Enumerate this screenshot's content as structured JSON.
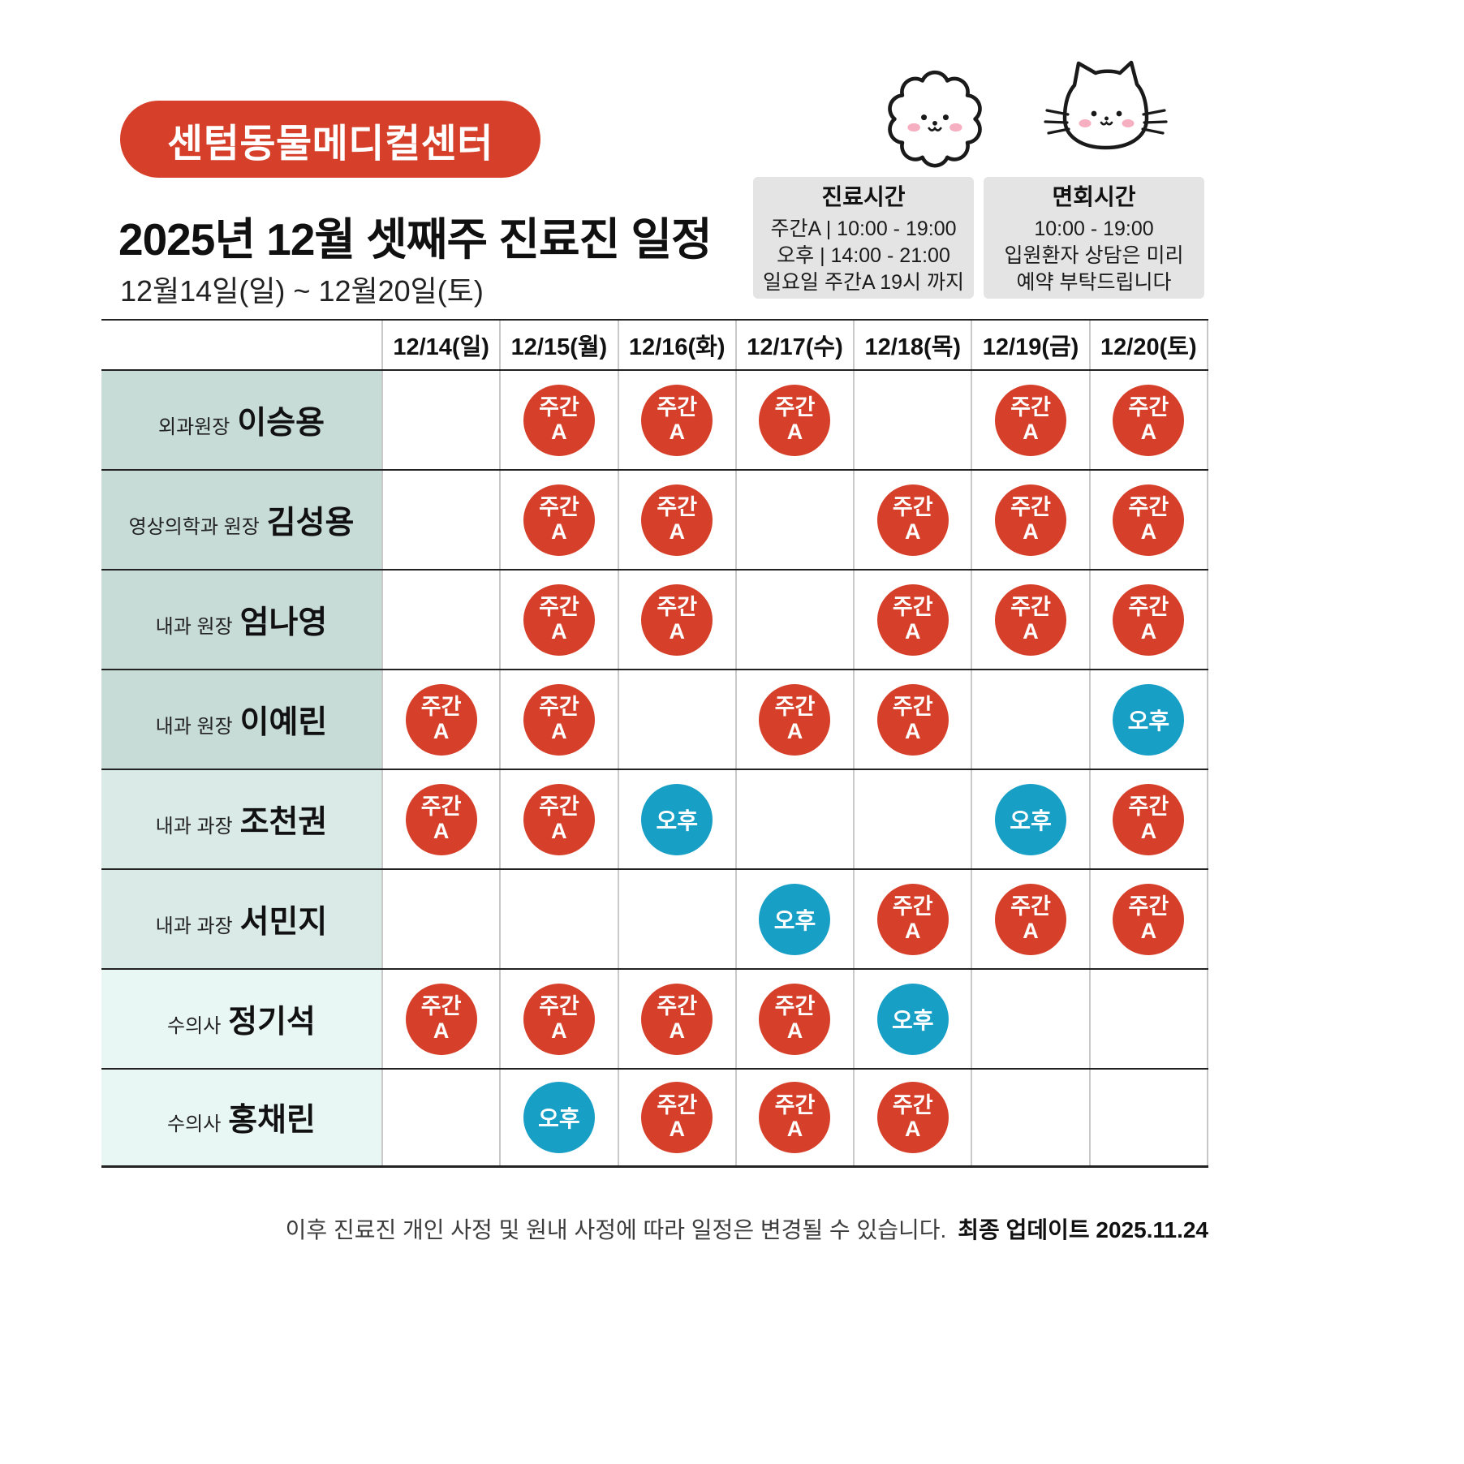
{
  "header": {
    "badge": "센텀동물메디컬센터",
    "title": "2025년 12월 셋째주 진료진 일정",
    "subtitle": "12월14일(일) ~ 12월20일(토)"
  },
  "info_boxes": [
    {
      "title": "진료시간",
      "lines": [
        "주간A | 10:00 - 19:00",
        "오후 | 14:00 - 21:00",
        "일요일 주간A 19시 까지"
      ]
    },
    {
      "title": "면회시간",
      "lines": [
        "10:00 - 19:00",
        "입원환자 상담은 미리",
        "예약 부탁드립니다"
      ]
    }
  ],
  "table": {
    "day_headers": [
      "12/14(일)",
      "12/15(월)",
      "12/16(화)",
      "12/17(수)",
      "12/18(목)",
      "12/19(금)",
      "12/20(토)"
    ],
    "shift_labels": {
      "dayA_line1": "주간",
      "dayA_line2": "A",
      "afternoon": "오후"
    },
    "rows": [
      {
        "role": "외과원장",
        "name": "이승용",
        "group": 1,
        "shifts": [
          null,
          "dayA",
          "dayA",
          "dayA",
          null,
          "dayA",
          "dayA"
        ]
      },
      {
        "role": "영상의학과 원장",
        "name": "김성용",
        "group": 1,
        "shifts": [
          null,
          "dayA",
          "dayA",
          null,
          "dayA",
          "dayA",
          "dayA"
        ]
      },
      {
        "role": "내과 원장",
        "name": "엄나영",
        "group": 1,
        "shifts": [
          null,
          "dayA",
          "dayA",
          null,
          "dayA",
          "dayA",
          "dayA"
        ]
      },
      {
        "role": "내과 원장",
        "name": "이예린",
        "group": 1,
        "shifts": [
          "dayA",
          "dayA",
          null,
          "dayA",
          "dayA",
          null,
          "afternoon"
        ]
      },
      {
        "role": "내과 과장",
        "name": "조천권",
        "group": 2,
        "shifts": [
          "dayA",
          "dayA",
          "afternoon",
          null,
          null,
          "afternoon",
          "dayA"
        ]
      },
      {
        "role": "내과 과장",
        "name": "서민지",
        "group": 2,
        "shifts": [
          null,
          null,
          null,
          "afternoon",
          "dayA",
          "dayA",
          "dayA"
        ]
      },
      {
        "role": "수의사",
        "name": "정기석",
        "group": 3,
        "shifts": [
          "dayA",
          "dayA",
          "dayA",
          "dayA",
          "afternoon",
          null,
          null
        ]
      },
      {
        "role": "수의사",
        "name": "홍채린",
        "group": 3,
        "shifts": [
          null,
          "afternoon",
          "dayA",
          "dayA",
          "dayA",
          null,
          null
        ]
      }
    ]
  },
  "footer": {
    "note": "이후 진료진 개인 사정 및 원내 사정에 따라 일정은 변경될 수 있습니다.",
    "update": "최종 업데이트  2025.11.24"
  },
  "colors": {
    "red": "#d6402a",
    "blue": "#189fc6",
    "group1_bg": "#c7dbd7",
    "group2_bg": "#daebe7",
    "group3_bg": "#e9f7f4",
    "info_bg": "#e4e4e4"
  }
}
